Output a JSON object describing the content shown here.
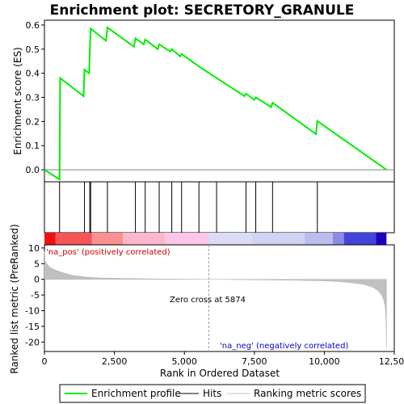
{
  "chart_data": {
    "type": "line",
    "title": "Enrichment plot: SECRETORY_GRANULE",
    "xlabel": "Rank in Ordered Dataset",
    "ylabel_top": "Enrichment score (ES)",
    "ylabel_bottom": "Ranked list metric (PreRanked)",
    "xlim": [
      0,
      12500
    ],
    "x_ticks": [
      0,
      2500,
      5000,
      7500,
      10000,
      12500
    ],
    "x_tick_labels": [
      "0",
      "2,500",
      "5,000",
      "7,500",
      "10,000",
      "12,500"
    ],
    "es_ylim": [
      -0.05,
      0.62
    ],
    "es_ticks": [
      0.0,
      0.1,
      0.2,
      0.3,
      0.4,
      0.5,
      0.6
    ],
    "es_tick_labels": [
      "0.0",
      "0.1",
      "0.2",
      "0.3",
      "0.4",
      "0.5",
      "0.6"
    ],
    "metric_ylim": [
      -23,
      11
    ],
    "metric_ticks": [
      10,
      5,
      0,
      -5,
      -10,
      -15,
      -20
    ],
    "metric_tick_labels": [
      "10",
      "5",
      "0",
      "-5",
      "-10",
      "-15",
      "-20"
    ],
    "series": [
      {
        "name": "Enrichment profile",
        "color": "#00ee00",
        "x": [
          0,
          540,
          560,
          1400,
          1430,
          1600,
          1620,
          1650,
          2200,
          2250,
          3200,
          3250,
          3550,
          3600,
          4050,
          4100,
          4500,
          4550,
          4850,
          4900,
          5500,
          6150,
          7150,
          7200,
          7500,
          7550,
          8100,
          8150,
          9700,
          9750,
          12220
        ],
        "y": [
          0.0,
          -0.04,
          0.38,
          0.305,
          0.415,
          0.4,
          0.49,
          0.585,
          0.535,
          0.59,
          0.51,
          0.545,
          0.52,
          0.54,
          0.5,
          0.52,
          0.49,
          0.5,
          0.47,
          0.48,
          0.43,
          0.38,
          0.305,
          0.315,
          0.29,
          0.3,
          0.26,
          0.278,
          0.148,
          0.202,
          0.0
        ]
      }
    ],
    "hits": [
      540,
      1430,
      1620,
      1650,
      2250,
      3250,
      3600,
      4100,
      4550,
      4900,
      5520,
      6150,
      7200,
      7550,
      8150,
      9750
    ],
    "color_bar": [
      {
        "x0": 0,
        "x1": 400,
        "color": "#ee1111"
      },
      {
        "x0": 400,
        "x1": 1700,
        "color": "#f55555"
      },
      {
        "x0": 1700,
        "x1": 2800,
        "color": "#fa9090"
      },
      {
        "x0": 2800,
        "x1": 4300,
        "color": "#fbb8cc"
      },
      {
        "x0": 4300,
        "x1": 5874,
        "color": "#fcc6e6"
      },
      {
        "x0": 5874,
        "x1": 7400,
        "color": "#dcdcf6"
      },
      {
        "x0": 7400,
        "x1": 9300,
        "color": "#d2d2f4"
      },
      {
        "x0": 9300,
        "x1": 10300,
        "color": "#bcbcee"
      },
      {
        "x0": 10300,
        "x1": 10700,
        "color": "#8c8ce6"
      },
      {
        "x0": 10700,
        "x1": 11850,
        "color": "#4444dd"
      },
      {
        "x0": 11850,
        "x1": 12220,
        "color": "#1c00c0"
      }
    ],
    "metric_curve": {
      "color": "#c0c0c0",
      "x": [
        0,
        30,
        100,
        200,
        400,
        700,
        1000,
        1500,
        2000,
        3000,
        4000,
        5000,
        5874,
        7000,
        8000,
        9000,
        10000,
        10500,
        11000,
        11400,
        11700,
        11900,
        12050,
        12120,
        12170,
        12200,
        12220
      ],
      "y": [
        9.0,
        5.8,
        4.8,
        3.8,
        2.9,
        2.0,
        1.3,
        0.7,
        0.45,
        0.25,
        0.12,
        0.05,
        0.0,
        -0.1,
        -0.2,
        -0.3,
        -0.5,
        -0.7,
        -1.1,
        -1.6,
        -2.4,
        -3.5,
        -5.0,
        -6.5,
        -8.5,
        -12.0,
        -22.0
      ]
    },
    "zero_cross_x": 5874,
    "annotations": {
      "pos_label": "'na_pos' (positively correlated)",
      "pos_color": "#cc0000",
      "neg_label": "'na_neg' (negatively correlated)",
      "neg_color": "#0000cc",
      "zero_cross_label": "Zero cross at 5874"
    },
    "legend": {
      "placement": "bottom",
      "items": [
        {
          "label": "Enrichment profile",
          "color": "#00ee00",
          "kind": "line"
        },
        {
          "label": "Hits",
          "color": "#000000",
          "kind": "line"
        },
        {
          "label": "Ranking metric scores",
          "color": "#c0c0c0",
          "kind": "line"
        }
      ]
    }
  }
}
